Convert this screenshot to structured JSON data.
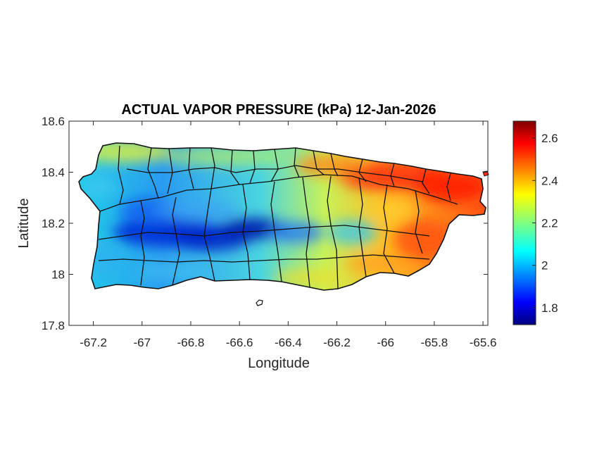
{
  "title": "ACTUAL VAPOR PRESSURE (kPa) 12-Jan-2026",
  "xlabel": "Longitude",
  "ylabel": "Latitude",
  "xlim": [
    -67.3,
    -65.58
  ],
  "ylim": [
    17.8,
    18.6
  ],
  "xticks": [
    {
      "value": -67.2,
      "label": "-67.2"
    },
    {
      "value": -67.0,
      "label": "-67"
    },
    {
      "value": -66.8,
      "label": "-66.8"
    },
    {
      "value": -66.6,
      "label": "-66.6"
    },
    {
      "value": -66.4,
      "label": "-66.4"
    },
    {
      "value": -66.2,
      "label": "-66.2"
    },
    {
      "value": -66.0,
      "label": "-66"
    },
    {
      "value": -65.8,
      "label": "-65.8"
    },
    {
      "value": -65.6,
      "label": "-65.6"
    }
  ],
  "yticks": [
    {
      "value": 17.8,
      "label": "17.8"
    },
    {
      "value": 18.0,
      "label": "18"
    },
    {
      "value": 18.2,
      "label": "18.2"
    },
    {
      "value": 18.4,
      "label": "18.4"
    },
    {
      "value": 18.6,
      "label": "18.6"
    }
  ],
  "colorbar": {
    "colormap": "jet",
    "range": [
      1.72,
      2.68
    ],
    "ticks": [
      {
        "value": 1.8,
        "label": "1.8"
      },
      {
        "value": 2.0,
        "label": "2"
      },
      {
        "value": 2.2,
        "label": "2.2"
      },
      {
        "value": 2.4,
        "label": "2.4"
      },
      {
        "value": 2.6,
        "label": "2.6"
      }
    ]
  },
  "chart_data": {
    "type": "heatmap",
    "title": "ACTUAL VAPOR PRESSURE (kPa) 12-Jan-2026",
    "xlabel": "Longitude",
    "ylabel": "Latitude",
    "xlim": [
      -67.3,
      -65.58
    ],
    "ylim": [
      17.8,
      18.6
    ],
    "grid": false,
    "unit": "kPa",
    "value_range": [
      1.72,
      2.68
    ],
    "field_samples": [
      {
        "lon": -67.15,
        "lat": 18.35,
        "value": 2.1
      },
      {
        "lon": -67.05,
        "lat": 18.45,
        "value": 2.25
      },
      {
        "lon": -66.95,
        "lat": 18.2,
        "value": 1.85
      },
      {
        "lon": -66.85,
        "lat": 18.15,
        "value": 1.75
      },
      {
        "lon": -66.6,
        "lat": 18.17,
        "value": 1.78
      },
      {
        "lon": -66.45,
        "lat": 18.15,
        "value": 1.95
      },
      {
        "lon": -66.7,
        "lat": 18.4,
        "value": 2.2
      },
      {
        "lon": -66.4,
        "lat": 18.42,
        "value": 2.35
      },
      {
        "lon": -66.15,
        "lat": 18.43,
        "value": 2.5
      },
      {
        "lon": -65.9,
        "lat": 18.4,
        "value": 2.6
      },
      {
        "lon": -65.75,
        "lat": 18.3,
        "value": 2.55
      },
      {
        "lon": -65.85,
        "lat": 18.08,
        "value": 2.55
      },
      {
        "lon": -66.1,
        "lat": 18.05,
        "value": 2.35
      },
      {
        "lon": -66.5,
        "lat": 18.0,
        "value": 2.2
      },
      {
        "lon": -67.15,
        "lat": 18.05,
        "value": 2.05
      }
    ]
  }
}
